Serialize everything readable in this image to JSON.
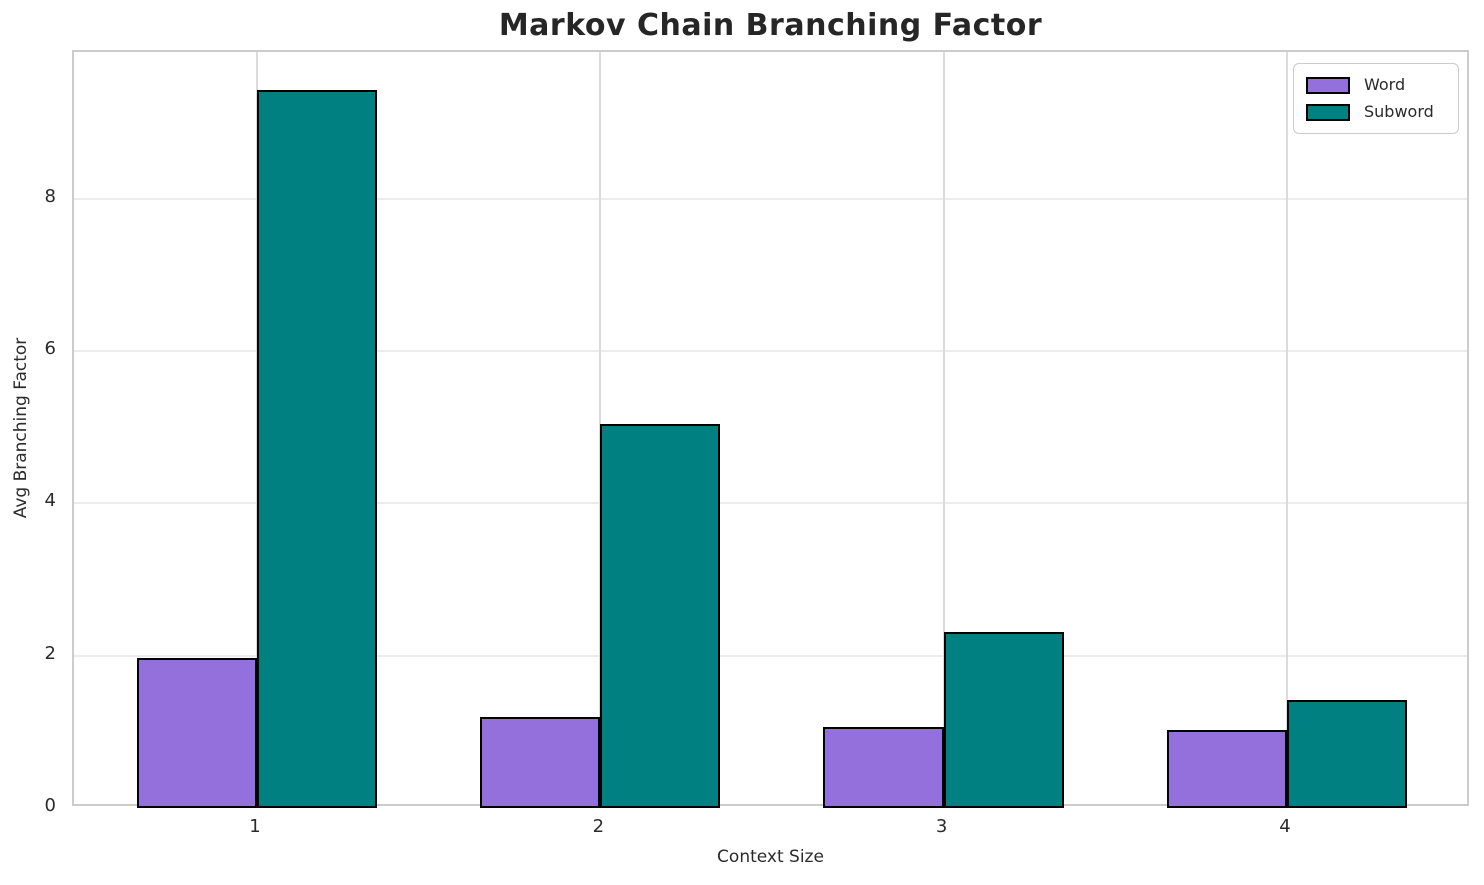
{
  "title": "Markov Chain Branching Factor",
  "chart_data": {
    "type": "bar",
    "title": "Markov Chain Branching Factor",
    "xlabel": "Context Size",
    "ylabel": "Avg Branching Factor",
    "categories": [
      "1",
      "2",
      "3",
      "4"
    ],
    "x_values": [
      1,
      2,
      3,
      4
    ],
    "series": [
      {
        "name": "Word",
        "color": "#9370DB",
        "values": [
          1.97,
          1.19,
          1.07,
          1.03
        ]
      },
      {
        "name": "Subword",
        "color": "#008080",
        "values": [
          9.43,
          5.05,
          2.31,
          1.42
        ]
      }
    ],
    "bar_width": 0.35,
    "bar_edge_color": "#000000",
    "yticks": [
      0,
      2,
      4,
      6,
      8
    ],
    "ylim": [
      0,
      9.93
    ],
    "xlim": [
      0.467,
      4.536
    ],
    "grid": true,
    "legend_position": "upper right"
  },
  "colors": {
    "background": "#ffffff",
    "spine": "#cccccc",
    "hgrid": "#ececec",
    "vgrid": "#dbdbdb",
    "text": "#2b2b2b",
    "title_text": "#262626"
  }
}
